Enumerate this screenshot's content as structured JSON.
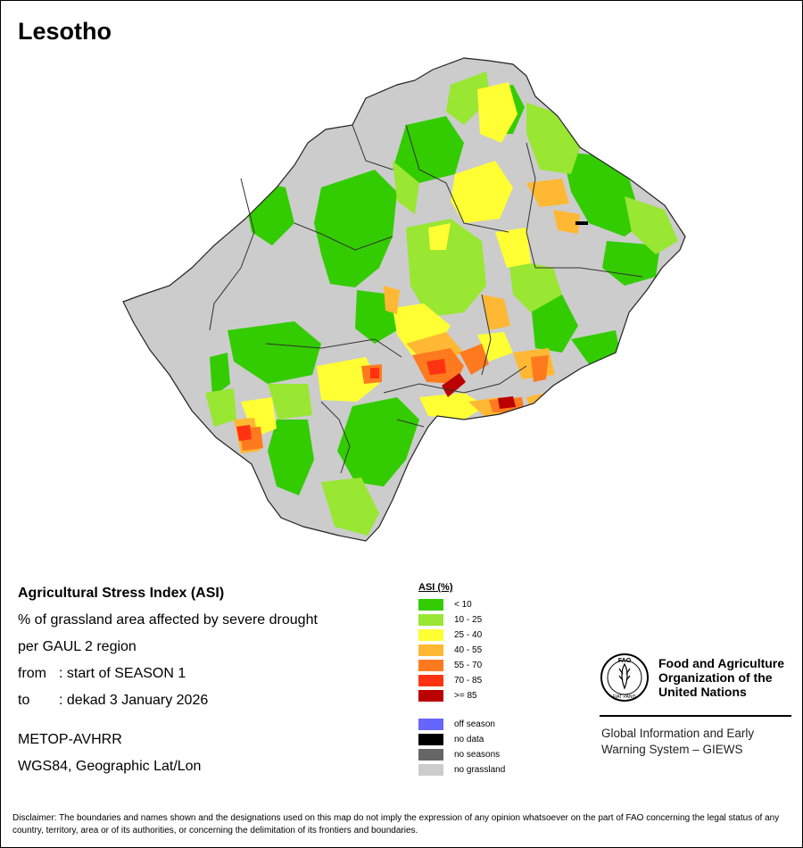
{
  "title": "Lesotho",
  "info": {
    "heading": "Agricultural Stress Index (ASI)",
    "line1": "% of grassland area affected by severe drought",
    "line2": "per GAUL 2 region",
    "from_label": "from",
    "from_value": ": start of SEASON 1",
    "to_label": "to",
    "to_value": ": dekad 3 January 2026",
    "sensor": "METOP-AVHRR",
    "projection": "WGS84, Geographic Lat/Lon"
  },
  "legend": {
    "title": "ASI (%)",
    "classes": [
      {
        "label": "< 10",
        "color": "#33cc00"
      },
      {
        "label": "10 - 25",
        "color": "#99e633"
      },
      {
        "label": "25 - 40",
        "color": "#ffff33"
      },
      {
        "label": "40 - 55",
        "color": "#ffb833"
      },
      {
        "label": "55 - 70",
        "color": "#ff7a1f"
      },
      {
        "label": "70 - 85",
        "color": "#ff3311"
      },
      {
        "label": ">= 85",
        "color": "#bb0000"
      }
    ],
    "special": [
      {
        "label": "off season",
        "color": "#6666ff"
      },
      {
        "label": "no data",
        "color": "#000000"
      },
      {
        "label": "no seasons",
        "color": "#666666"
      },
      {
        "label": "no grassland",
        "color": "#cccccc"
      }
    ]
  },
  "fao": {
    "logo_text": "FAO",
    "logo_motto": "FIAT PANIS",
    "name_line1": "Food and Agriculture",
    "name_line2": "Organization of the",
    "name_line3": "United Nations",
    "giews_line1": "Global Information and Early",
    "giews_line2": "Warning System – GIEWS"
  },
  "disclaimer": "Disclaimer: The boundaries and names shown and the designations used on this map do not imply the expression of any opinion whatsoever on the part of FAO concerning the legal status of any country, territory, area or of its authorities, or concerning the delimitation of its frontiers and boundaries."
}
